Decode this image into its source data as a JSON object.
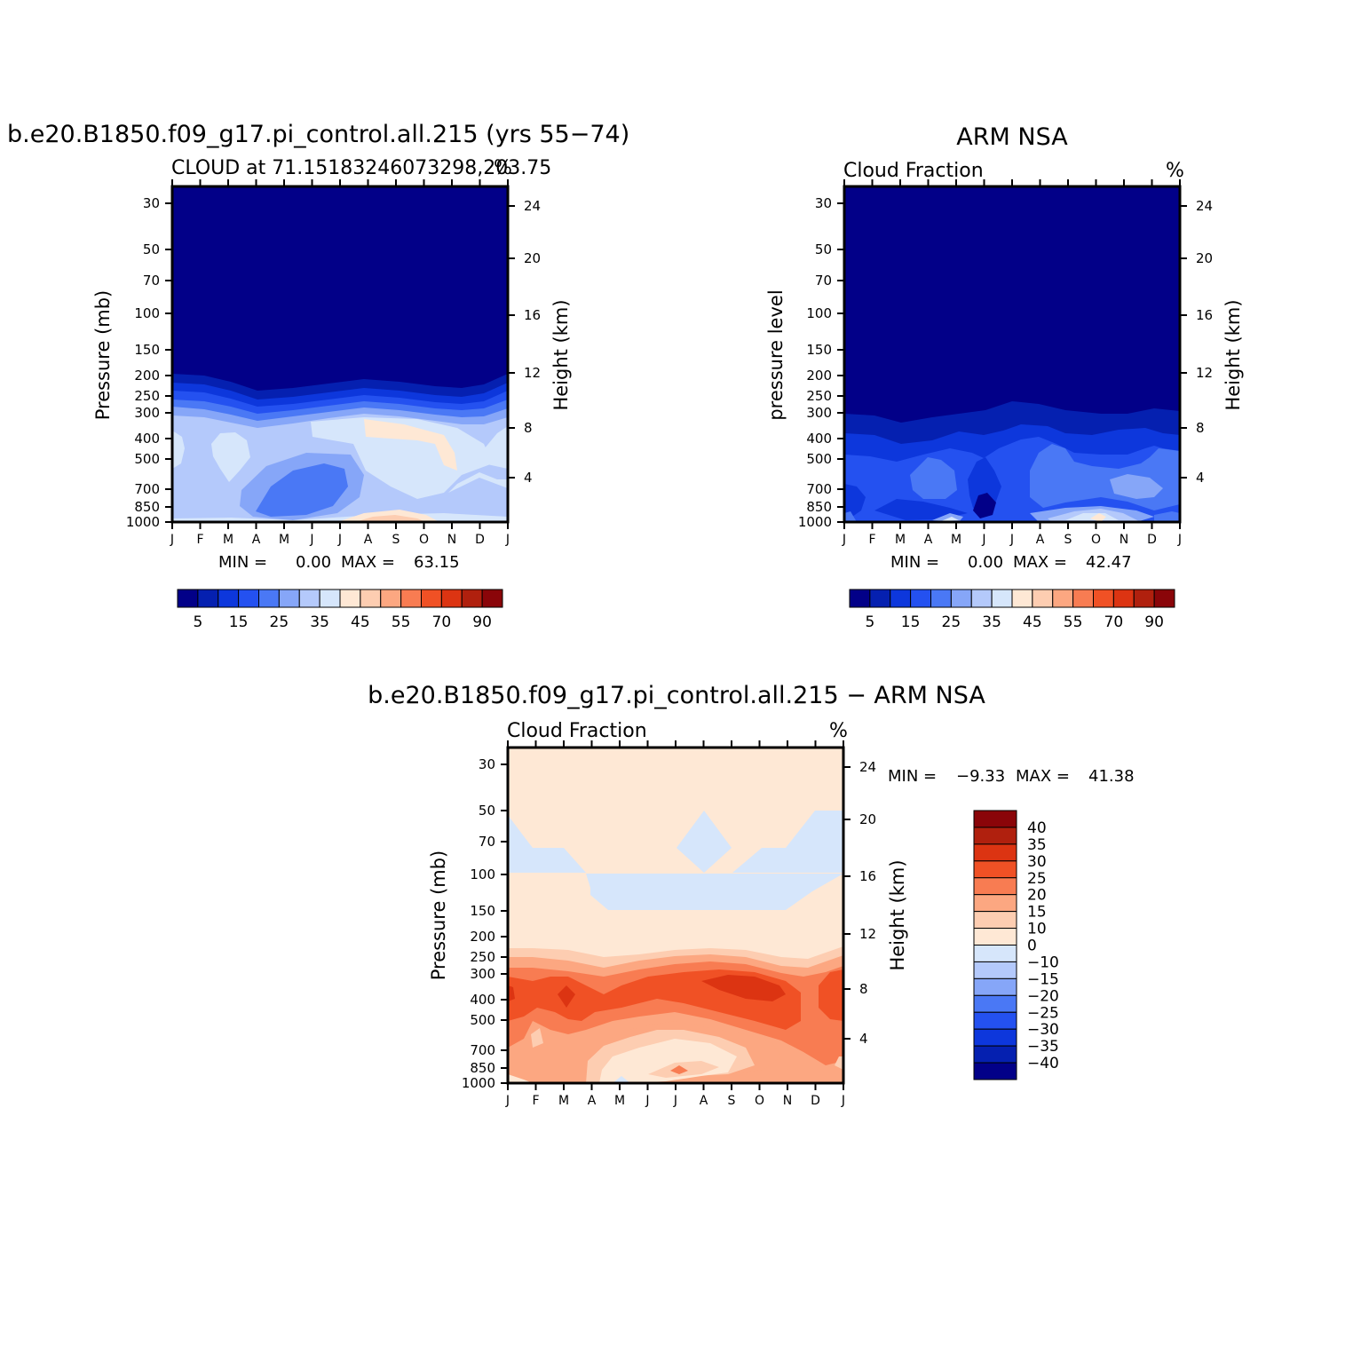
{
  "chart_data": [
    {
      "type": "heatmap",
      "title": "b.e20.B1850.f09_g17.pi_control.all.215 (yrs 55−74)",
      "subtitle": "CLOUD at 71.15183246073298,203.75",
      "units": "%",
      "ylabel_left": "Pressure (mb)",
      "ylabel_right": "Height (km)",
      "x_ticks": [
        "J",
        "F",
        "M",
        "A",
        "M",
        "J",
        "J",
        "A",
        "S",
        "O",
        "N",
        "D",
        "J"
      ],
      "y_left_ticks": [
        "30",
        "50",
        "70",
        "100",
        "150",
        "200",
        "250",
        "300",
        "400",
        "500",
        "700",
        "850",
        "1000"
      ],
      "y_right_ticks": [
        "24",
        "20",
        "16",
        "12",
        "8",
        "4"
      ],
      "ylim_mb": [
        1000,
        25
      ],
      "min_label": "MIN =",
      "min_value": "0.00",
      "max_label": "MAX =",
      "max_value": "63.15",
      "colorbar_labels": [
        "5",
        "15",
        "25",
        "35",
        "45",
        "55",
        "70",
        "90"
      ],
      "contour_levels": [
        5,
        10,
        15,
        20,
        25,
        30,
        35,
        40,
        45,
        50,
        55,
        60,
        70,
        80,
        90
      ],
      "mean_profile": [
        {
          "p": 30,
          "v": 0
        },
        {
          "p": 150,
          "v": 0
        },
        {
          "p": 200,
          "v": 4
        },
        {
          "p": 250,
          "v": 12
        },
        {
          "p": 300,
          "v": 22
        },
        {
          "p": 400,
          "v": 32
        },
        {
          "p": 500,
          "v": 30
        },
        {
          "p": 700,
          "v": 27
        },
        {
          "p": 850,
          "v": 30
        },
        {
          "p": 1000,
          "v": 40
        }
      ]
    },
    {
      "type": "heatmap",
      "title": "ARM NSA",
      "subtitle": "Cloud Fraction",
      "units": "%",
      "ylabel_left": "pressure level",
      "ylabel_right": "Height (km)",
      "x_ticks": [
        "J",
        "F",
        "M",
        "A",
        "M",
        "J",
        "J",
        "A",
        "S",
        "O",
        "N",
        "D",
        "J"
      ],
      "y_left_ticks": [
        "30",
        "50",
        "70",
        "100",
        "150",
        "200",
        "250",
        "300",
        "400",
        "500",
        "700",
        "850",
        "1000"
      ],
      "y_right_ticks": [
        "24",
        "20",
        "16",
        "12",
        "8",
        "4"
      ],
      "min_label": "MIN =",
      "min_value": "0.00",
      "max_label": "MAX =",
      "max_value": "42.47",
      "colorbar_labels": [
        "5",
        "15",
        "25",
        "35",
        "45",
        "55",
        "70",
        "90"
      ],
      "contour_levels": [
        5,
        10,
        15,
        20,
        25,
        30,
        35,
        40,
        45,
        50,
        55,
        60,
        70,
        80,
        90
      ],
      "mean_profile": [
        {
          "p": 30,
          "v": 0
        },
        {
          "p": 250,
          "v": 0
        },
        {
          "p": 300,
          "v": 4
        },
        {
          "p": 400,
          "v": 10
        },
        {
          "p": 500,
          "v": 17
        },
        {
          "p": 700,
          "v": 20
        },
        {
          "p": 850,
          "v": 15
        },
        {
          "p": 1000,
          "v": 25
        }
      ]
    },
    {
      "type": "heatmap",
      "title": "b.e20.B1850.f09_g17.pi_control.all.215 − ARM NSA",
      "subtitle": "Cloud Fraction",
      "units": "%",
      "ylabel_left": "Pressure (mb)",
      "ylabel_right": "Height (km)",
      "x_ticks": [
        "J",
        "F",
        "M",
        "A",
        "M",
        "J",
        "J",
        "A",
        "S",
        "O",
        "N",
        "D",
        "J"
      ],
      "y_left_ticks": [
        "30",
        "50",
        "70",
        "100",
        "150",
        "200",
        "250",
        "300",
        "400",
        "500",
        "700",
        "850",
        "1000"
      ],
      "y_right_ticks": [
        "24",
        "20",
        "16",
        "12",
        "8",
        "4"
      ],
      "min_label": "MIN =",
      "min_value": "−9.33",
      "max_label": "MAX =",
      "max_value": "41.38",
      "colorbar_labels": [
        "40",
        "35",
        "30",
        "25",
        "20",
        "15",
        "10",
        "0",
        "−10",
        "−15",
        "−20",
        "−25",
        "−30",
        "−35",
        "−40"
      ],
      "contour_levels": [
        -40,
        -35,
        -30,
        -25,
        -20,
        -15,
        -10,
        0,
        10,
        15,
        20,
        25,
        30,
        35,
        40
      ]
    }
  ],
  "colors": {
    "levels": [
      "#020088",
      "#0520b0",
      "#0d37dc",
      "#2451f0",
      "#4a78f5",
      "#86a6f8",
      "#b4c9fb",
      "#d6e6fb",
      "#fee8d5",
      "#fdcdb1",
      "#fca781",
      "#f87c52",
      "#f05125",
      "#dc3412",
      "#b0200e",
      "#8a0509"
    ]
  }
}
